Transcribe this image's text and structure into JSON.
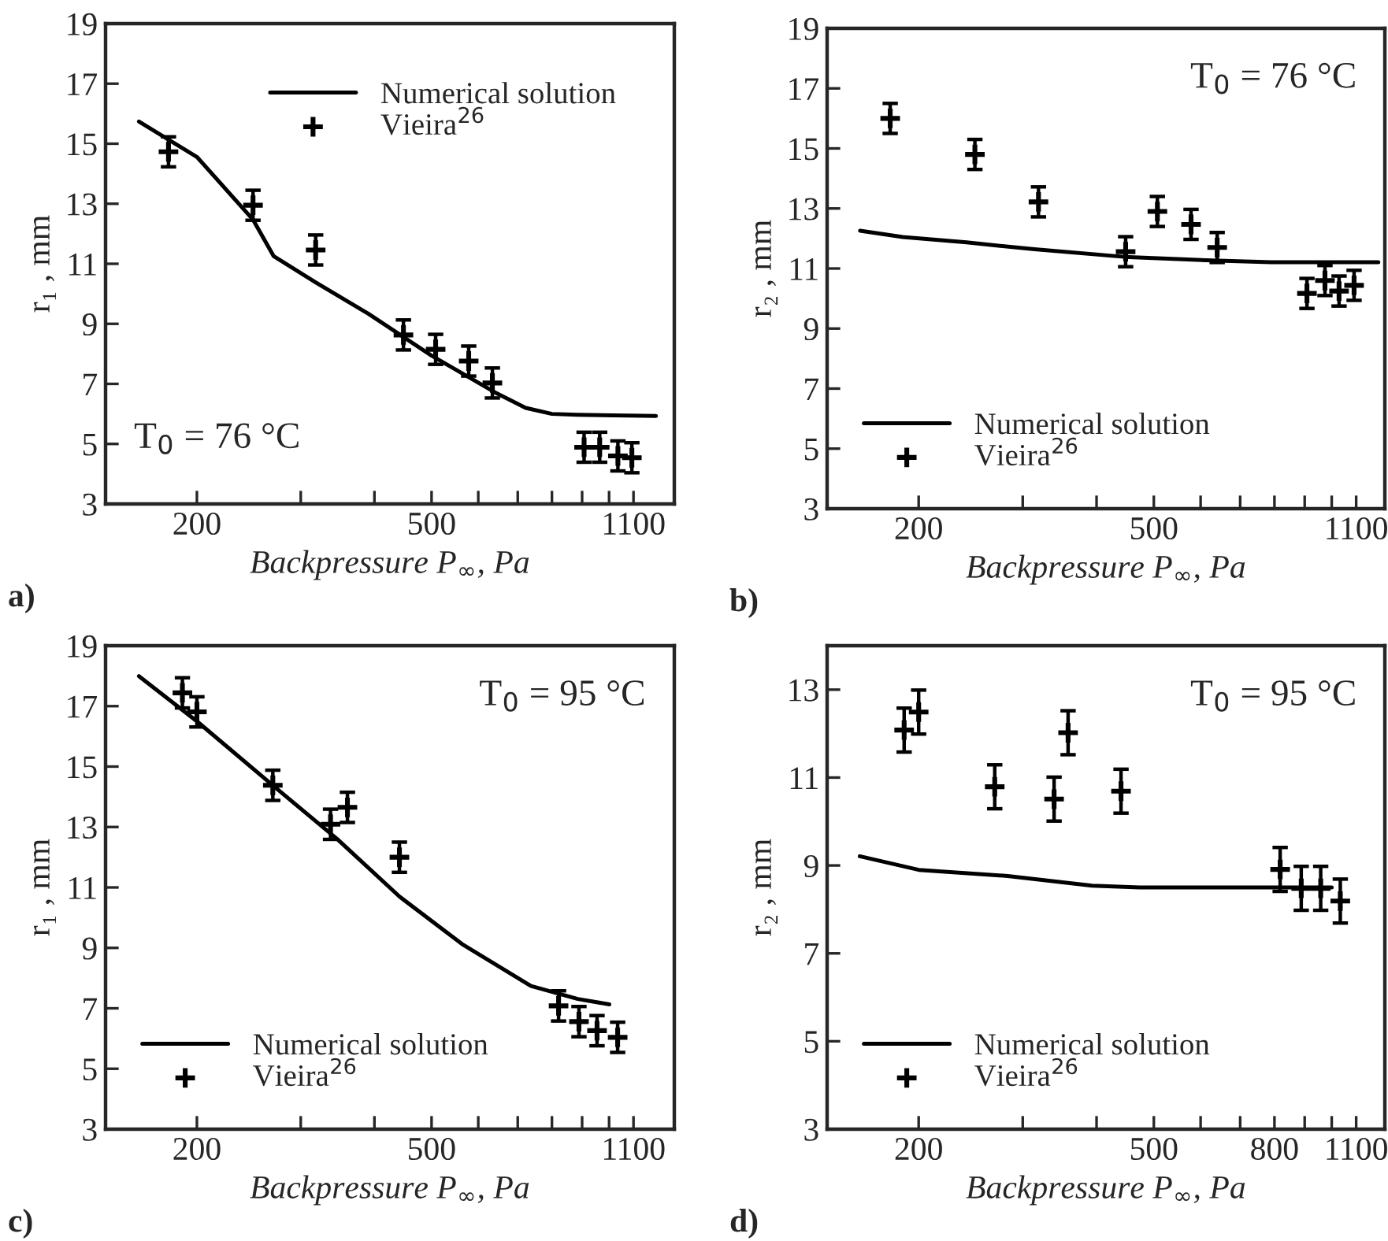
{
  "chart_data": [
    {
      "type": "line",
      "xlabel": "Backpressure P$_{∞}$, Pa",
      "ylabel": "r₁ , mm",
      "log": "x",
      "xlim": [
        140,
        1290
      ],
      "ylim": [
        3,
        19
      ],
      "xticks": [
        200,
        {
          "value": 300,
          "label": null
        },
        {
          "value": 400,
          "label": null
        },
        500,
        {
          "value": 600,
          "label": null
        },
        {
          "value": 700,
          "label": null
        },
        {
          "value": 800,
          "label": null
        },
        {
          "value": 900,
          "label": null
        },
        {
          "value": 1000,
          "label": null
        },
        1100
      ],
      "yticks": [
        3,
        5,
        7,
        9,
        11,
        13,
        15,
        17,
        19
      ],
      "legend": "top right",
      "grid": false,
      "annotations": [
        "T$_{0}$ = 76 °C",
        "a)"
      ],
      "series": [
        {
          "name": "Numerical solution",
          "type": "line",
          "color": "#000000",
          "x": [
            159.5,
            200,
            249,
            270,
            318,
            391,
            500,
            640,
            722,
            800,
            884,
            1201
          ],
          "values": [
            15.74,
            14.56,
            12.47,
            11.25,
            10.38,
            9.33,
            7.94,
            6.72,
            6.2,
            6.0,
            5.97,
            5.93
          ]
        },
        {
          "name": "Vieira$^{26}$",
          "type": "scatter",
          "color": "#000000",
          "marker": "cross",
          "x": [
            179,
            249,
            318,
            448,
            508,
            578,
            634,
            907,
            964,
            1035,
            1093
          ],
          "values": [
            14.73,
            12.95,
            11.46,
            8.63,
            8.15,
            7.76,
            7.03,
            4.89,
            4.89,
            4.6,
            4.54
          ],
          "errors": [
            0.5,
            0.5,
            0.5,
            0.5,
            0.5,
            0.5,
            0.5,
            0.5,
            0.5,
            0.5,
            0.5
          ]
        }
      ]
    },
    {
      "type": "line",
      "xlabel": "Backpressure P$_{∞}$, Pa",
      "ylabel": "r₂ , mm",
      "log": "x",
      "xlim": [
        140,
        1230
      ],
      "ylim": [
        3,
        19
      ],
      "xticks": [
        200,
        {
          "value": 300,
          "label": null
        },
        {
          "value": 400,
          "label": null
        },
        500,
        {
          "value": 600,
          "label": null
        },
        {
          "value": 700,
          "label": null
        },
        {
          "value": 800,
          "label": null
        },
        {
          "value": 900,
          "label": null
        },
        {
          "value": 1000,
          "label": null
        },
        1100
      ],
      "yticks": [
        3,
        5,
        7,
        9,
        11,
        13,
        15,
        17,
        19
      ],
      "legend": "bottom left",
      "grid": false,
      "annotations": [
        "T$_{0}$ = 76 °C",
        "b)"
      ],
      "series": [
        {
          "name": "Numerical solution",
          "type": "line",
          "color": "#000000",
          "x": [
            159.2,
            188,
            241,
            314,
            445,
            643,
            789,
            1199
          ],
          "values": [
            12.26,
            12.05,
            11.87,
            11.64,
            11.39,
            11.26,
            11.21,
            11.21
          ]
        },
        {
          "name": "Vieira$^{26}$",
          "type": "scatter",
          "color": "#000000",
          "marker": "cross",
          "x": [
            179,
            249,
            319,
            448,
            507,
            578,
            640,
            908,
            974,
            1029,
            1091
          ],
          "values": [
            16.0,
            14.8,
            13.22,
            11.56,
            12.9,
            12.47,
            11.7,
            10.17,
            10.6,
            10.25,
            10.44
          ],
          "errors": [
            0.5,
            0.5,
            0.5,
            0.5,
            0.5,
            0.5,
            0.5,
            0.5,
            0.5,
            0.5,
            0.5
          ]
        }
      ]
    },
    {
      "type": "line",
      "xlabel": "Backpressure P$_{∞}$, Pa",
      "ylabel": "r₁ , mm",
      "log": "x",
      "xlim": [
        140,
        1290
      ],
      "ylim": [
        3,
        19
      ],
      "xticks": [
        200,
        {
          "value": 300,
          "label": null
        },
        {
          "value": 400,
          "label": null
        },
        500,
        {
          "value": 600,
          "label": null
        },
        {
          "value": 700,
          "label": null
        },
        {
          "value": 800,
          "label": null
        },
        {
          "value": 900,
          "label": null
        },
        {
          "value": 1000,
          "label": null
        },
        1100
      ],
      "yticks": [
        3,
        5,
        7,
        9,
        11,
        13,
        15,
        17,
        19
      ],
      "legend": "bottom left",
      "grid": false,
      "annotations": [
        "T$_{0}$ = 95 °C",
        "c)"
      ],
      "series": [
        {
          "name": "Numerical solution",
          "type": "line",
          "color": "#000000",
          "x": [
            159.5,
            200,
            270,
            346,
            441,
            563,
            737,
            885,
            1001
          ],
          "values": [
            17.99,
            16.5,
            14.35,
            12.6,
            10.7,
            9.13,
            7.74,
            7.31,
            7.13
          ]
        },
        {
          "name": "Vieira$^{26}$",
          "type": "scatter",
          "color": "#000000",
          "marker": "cross",
          "x": [
            189,
            200,
            269,
            337,
            360,
            441,
            821,
            889,
            954,
            1034
          ],
          "values": [
            17.44,
            16.81,
            14.38,
            13.09,
            13.65,
            12.0,
            7.08,
            6.56,
            6.26,
            6.04
          ],
          "errors": [
            0.5,
            0.5,
            0.5,
            0.5,
            0.5,
            0.5,
            0.5,
            0.5,
            0.5,
            0.5
          ]
        }
      ]
    },
    {
      "type": "line",
      "xlabel": "Backpressure P$_{∞}$, Pa",
      "ylabel": "r₂ , mm",
      "log": "x",
      "xlim": [
        140,
        1230
      ],
      "ylim": [
        3,
        14
      ],
      "xticks": [
        200,
        {
          "value": 300,
          "label": null
        },
        {
          "value": 400,
          "label": null
        },
        500,
        {
          "value": 600,
          "label": null
        },
        {
          "value": 700,
          "label": null
        },
        800,
        {
          "value": 900,
          "label": null
        },
        {
          "value": 1000,
          "label": null
        },
        1100
      ],
      "yticks": [
        3,
        5,
        7,
        9,
        11,
        13
      ],
      "legend": "bottom left",
      "grid": false,
      "annotations": [
        "T$_{0}$ = 95 °C",
        "d)"
      ],
      "series": [
        {
          "name": "Numerical solution",
          "type": "line",
          "color": "#000000",
          "x": [
            159,
            200,
            283,
            393,
            473,
            1000
          ],
          "values": [
            9.21,
            8.9,
            8.76,
            8.54,
            8.5,
            8.5
          ]
        },
        {
          "name": "Vieira$^{26}$",
          "type": "scatter",
          "color": "#000000",
          "marker": "cross",
          "x": [
            189,
            200,
            269,
            339,
            358,
            440,
            818,
            888,
            958,
            1034
          ],
          "values": [
            12.08,
            12.49,
            10.79,
            10.51,
            12.02,
            10.69,
            8.91,
            8.48,
            8.48,
            8.19
          ],
          "errors": [
            0.5,
            0.5,
            0.5,
            0.5,
            0.5,
            0.5,
            0.5,
            0.5,
            0.5,
            0.5
          ]
        }
      ]
    }
  ]
}
